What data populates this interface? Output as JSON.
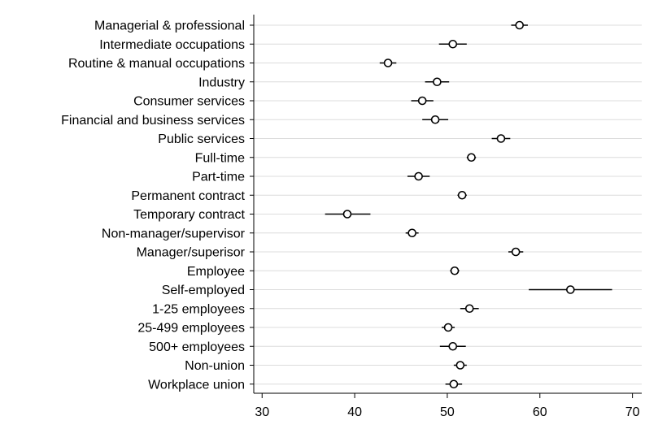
{
  "chart_data": {
    "type": "dot-plot",
    "title": "",
    "xlabel": "",
    "ylabel": "",
    "xlim": [
      29.1,
      71.0
    ],
    "xticks": [
      30,
      40,
      50,
      60,
      70
    ],
    "grid": "horizontal",
    "marker": "hollow-circle",
    "color": "#000000",
    "gridColor": "#dcdcdc",
    "categories": [
      "Managerial & professional",
      "Intermediate occupations",
      "Routine & manual occupations",
      "Industry",
      "Consumer services",
      "Financial and business services",
      "Public services",
      "Full-time",
      "Part-time",
      "Permanent contract",
      "Temporary contract",
      "Non-manager/supervisor",
      "Manager/superisor",
      "Employee",
      "Self-employed",
      "1-25 employees",
      "25-499 employees",
      "500+ employees",
      "Non-union",
      "Workplace union"
    ],
    "points": [
      {
        "value": 57.8,
        "low": 56.9,
        "high": 58.7
      },
      {
        "value": 50.6,
        "low": 49.1,
        "high": 52.1
      },
      {
        "value": 43.6,
        "low": 42.7,
        "high": 44.5
      },
      {
        "value": 48.9,
        "low": 47.6,
        "high": 50.2
      },
      {
        "value": 47.3,
        "low": 46.1,
        "high": 48.5
      },
      {
        "value": 48.7,
        "low": 47.3,
        "high": 50.1
      },
      {
        "value": 55.8,
        "low": 54.8,
        "high": 56.8
      },
      {
        "value": 52.6,
        "low": 52.1,
        "high": 53.1
      },
      {
        "value": 46.9,
        "low": 45.7,
        "high": 48.1
      },
      {
        "value": 51.6,
        "low": 51.1,
        "high": 52.1
      },
      {
        "value": 39.2,
        "low": 36.8,
        "high": 41.7
      },
      {
        "value": 46.2,
        "low": 45.5,
        "high": 46.9
      },
      {
        "value": 57.4,
        "low": 56.6,
        "high": 58.2
      },
      {
        "value": 50.8,
        "low": 50.3,
        "high": 51.3
      },
      {
        "value": 63.3,
        "low": 58.8,
        "high": 67.8
      },
      {
        "value": 52.4,
        "low": 51.4,
        "high": 53.4
      },
      {
        "value": 50.1,
        "low": 49.4,
        "high": 50.8
      },
      {
        "value": 50.6,
        "low": 49.2,
        "high": 52.0
      },
      {
        "value": 51.4,
        "low": 50.7,
        "high": 52.1
      },
      {
        "value": 50.7,
        "low": 49.8,
        "high": 51.6
      }
    ]
  }
}
